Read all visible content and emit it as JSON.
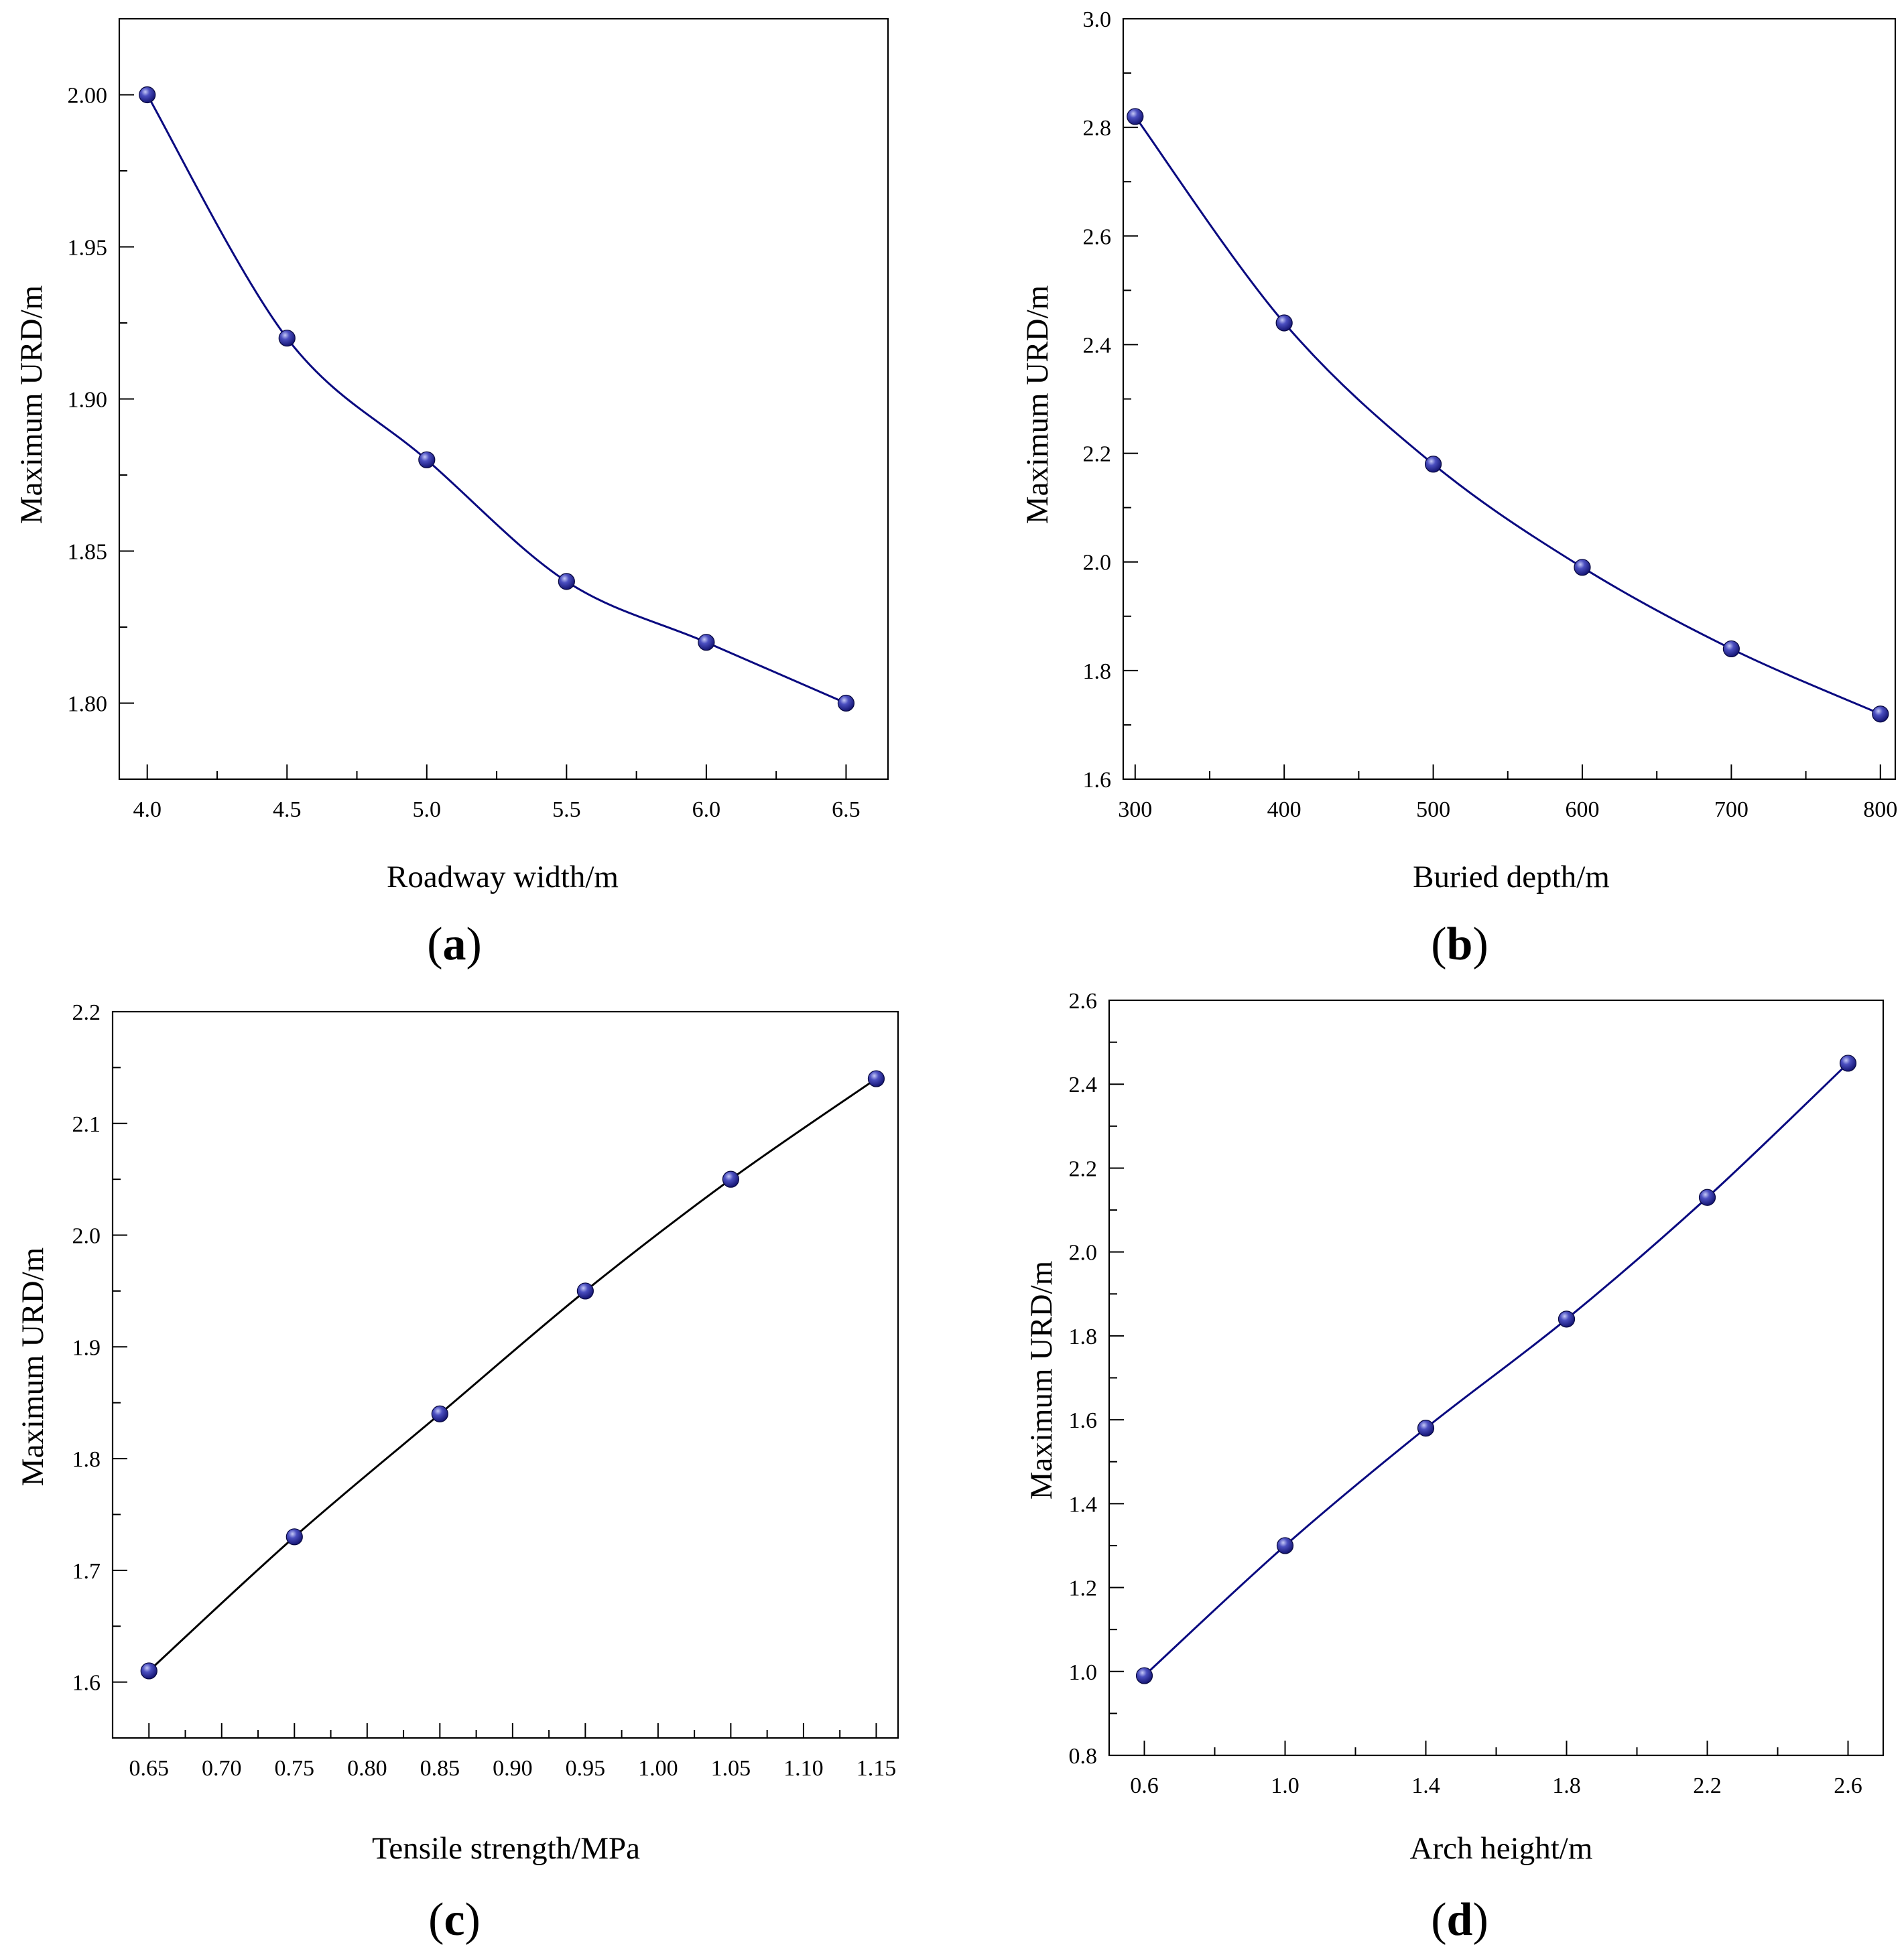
{
  "figure": {
    "colors": {
      "marker": "#10107a",
      "marker_highlight": "#b9bdf2",
      "axis": "#000000"
    }
  },
  "chart_data": [
    {
      "id": "a",
      "type": "line",
      "panel_label": "a",
      "xlabel": "Roadway width/m",
      "ylabel": "Maximum URD/m",
      "x": [
        4.0,
        4.5,
        5.0,
        5.5,
        6.0,
        6.5
      ],
      "y": [
        2.0,
        1.92,
        1.88,
        1.84,
        1.82,
        1.8
      ],
      "xlim": [
        3.9,
        6.65
      ],
      "ylim": [
        1.775,
        2.025
      ],
      "x_ticks": [
        "4.0",
        "4.5",
        "5.0",
        "5.5",
        "6.0",
        "6.5"
      ],
      "x_tick_values": [
        4.0,
        4.5,
        5.0,
        5.5,
        6.0,
        6.5
      ],
      "x_minor_ticks": [
        4.25,
        4.75,
        5.25,
        5.75,
        6.25
      ],
      "y_ticks": [
        "1.80",
        "1.85",
        "1.90",
        "1.95",
        "2.00"
      ],
      "y_tick_values": [
        1.8,
        1.85,
        1.9,
        1.95,
        2.0
      ],
      "y_minor_ticks": [
        1.825,
        1.875,
        1.925,
        1.975
      ],
      "line_color": "#0a0a80",
      "grid": false
    },
    {
      "id": "b",
      "type": "line",
      "panel_label": "b",
      "xlabel": "Buried depth/m",
      "ylabel": "Maximum URD/m",
      "x": [
        300,
        400,
        500,
        600,
        700,
        800
      ],
      "y": [
        2.82,
        2.44,
        2.18,
        1.99,
        1.84,
        1.72
      ],
      "xlim": [
        292,
        810
      ],
      "ylim": [
        1.6,
        3.0
      ],
      "x_ticks": [
        "300",
        "400",
        "500",
        "600",
        "700",
        "800"
      ],
      "x_tick_values": [
        300,
        400,
        500,
        600,
        700,
        800
      ],
      "x_minor_ticks": [
        350,
        450,
        550,
        650,
        750
      ],
      "y_ticks": [
        "1.6",
        "1.8",
        "2.0",
        "2.2",
        "2.4",
        "2.6",
        "2.8",
        "3.0"
      ],
      "y_tick_values": [
        1.6,
        1.8,
        2.0,
        2.2,
        2.4,
        2.6,
        2.8,
        3.0
      ],
      "y_minor_ticks": [
        1.7,
        1.9,
        2.1,
        2.3,
        2.5,
        2.7,
        2.9
      ],
      "line_color": "#0a0a80",
      "grid": false
    },
    {
      "id": "c",
      "type": "line",
      "panel_label": "c",
      "xlabel": "Tensile strength/MPa",
      "ylabel": "Maximum URD/m",
      "x": [
        0.65,
        0.75,
        0.85,
        0.95,
        1.05,
        1.15
      ],
      "y": [
        1.61,
        1.73,
        1.84,
        1.95,
        2.05,
        2.14
      ],
      "xlim": [
        0.625,
        1.165
      ],
      "ylim": [
        1.55,
        2.2
      ],
      "x_ticks": [
        "0.65",
        "0.70",
        "0.75",
        "0.80",
        "0.85",
        "0.90",
        "0.95",
        "1.00",
        "1.05",
        "1.10",
        "1.15"
      ],
      "x_tick_values": [
        0.65,
        0.7,
        0.75,
        0.8,
        0.85,
        0.9,
        0.95,
        1.0,
        1.05,
        1.1,
        1.15
      ],
      "x_minor_ticks": [
        0.675,
        0.725,
        0.775,
        0.825,
        0.875,
        0.925,
        0.975,
        1.025,
        1.075,
        1.125
      ],
      "y_ticks": [
        "1.6",
        "1.7",
        "1.8",
        "1.9",
        "2.0",
        "2.1",
        "2.2"
      ],
      "y_tick_values": [
        1.6,
        1.7,
        1.8,
        1.9,
        2.0,
        2.1,
        2.2
      ],
      "y_minor_ticks": [
        1.65,
        1.75,
        1.85,
        1.95,
        2.05,
        2.15
      ],
      "line_color": "#000000",
      "grid": false
    },
    {
      "id": "d",
      "type": "line",
      "panel_label": "d",
      "xlabel": "Arch height/m",
      "ylabel": "Maximum URD/m",
      "x": [
        0.6,
        1.0,
        1.4,
        1.8,
        2.2,
        2.6
      ],
      "y": [
        0.99,
        1.3,
        1.58,
        1.84,
        2.13,
        2.45
      ],
      "xlim": [
        0.5,
        2.7
      ],
      "ylim": [
        0.8,
        2.6
      ],
      "x_ticks": [
        "0.6",
        "1.0",
        "1.4",
        "1.8",
        "2.2",
        "2.6"
      ],
      "x_tick_values": [
        0.6,
        1.0,
        1.4,
        1.8,
        2.2,
        2.6
      ],
      "x_minor_ticks": [
        0.8,
        1.2,
        1.6,
        2.0,
        2.4
      ],
      "y_ticks": [
        "0.8",
        "1.0",
        "1.2",
        "1.4",
        "1.6",
        "1.8",
        "2.0",
        "2.2",
        "2.4",
        "2.6"
      ],
      "y_tick_values": [
        0.8,
        1.0,
        1.2,
        1.4,
        1.6,
        1.8,
        2.0,
        2.2,
        2.4,
        2.6
      ],
      "y_minor_ticks": [
        0.9,
        1.1,
        1.3,
        1.5,
        1.7,
        1.9,
        2.1,
        2.3,
        2.5
      ],
      "line_color": "#0a0a80",
      "grid": false
    }
  ]
}
